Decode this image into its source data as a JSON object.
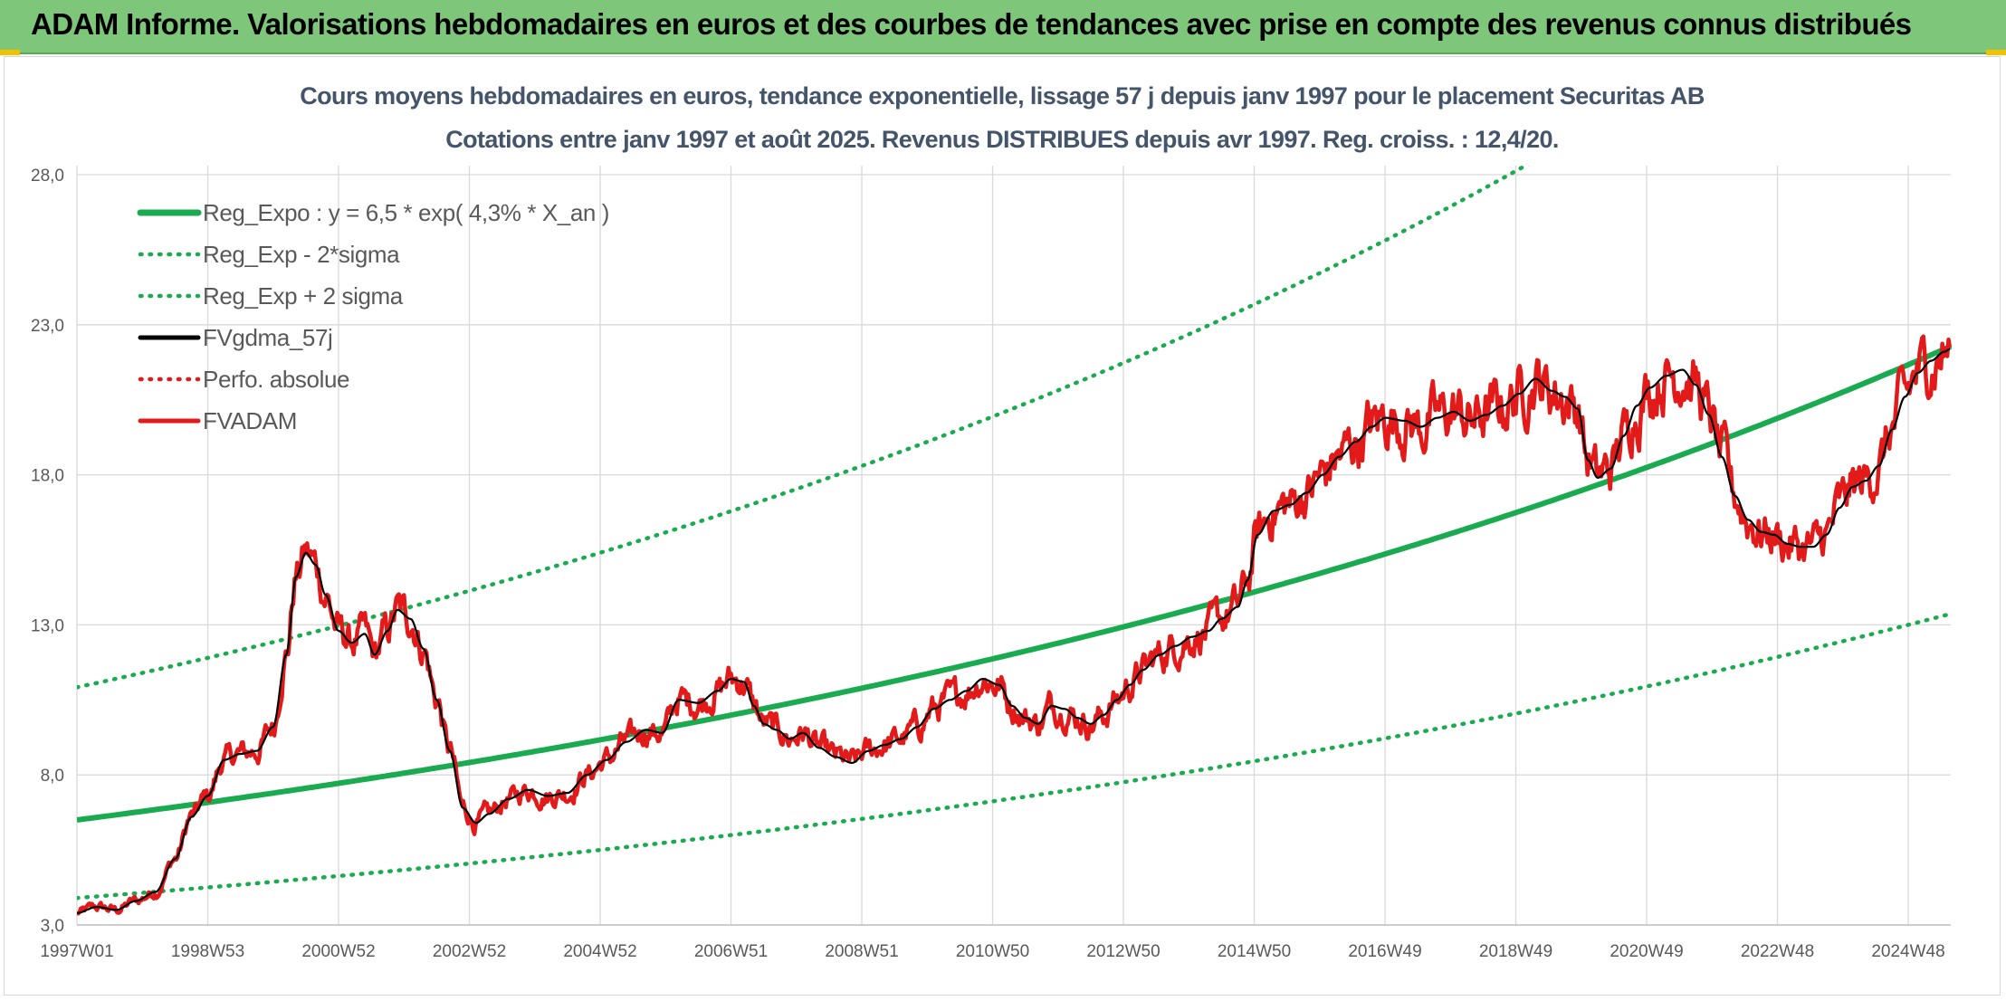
{
  "banner": {
    "title": "ADAM Informe. Valorisations hebdomadaires en euros et des courbes de tendances avec prise en compte des revenus connus distribués"
  },
  "colors": {
    "banner_bg": "#7dc67a",
    "regression": "#1aaa4f",
    "bands": "#1aaa4f",
    "smoothed": "#000000",
    "price": "#e31a1a",
    "title_text": "#44546a",
    "gridlines": "#d9d9d9"
  },
  "chart_data": {
    "type": "line",
    "title": "Cours moyens hebdomadaires en euros, tendance exponentielle, lissage 57 j depuis janv 1997 pour le placement Securitas AB",
    "subtitle": "Cotations entre janv 1997 et août 2025. Revenus DISTRIBUES depuis avr 1997. Reg. croiss. : 12,4/20.",
    "xlabel": "",
    "ylabel": "",
    "ylim": [
      3.0,
      28.0
    ],
    "xlim": [
      1997.0,
      2025.65
    ],
    "y_ticks": [
      "3,0",
      "8,0",
      "13,0",
      "18,0",
      "23,0",
      "28,0"
    ],
    "y_tick_values": [
      3,
      8,
      13,
      18,
      23,
      28
    ],
    "x_ticks": [
      "1997W01",
      "1998W53",
      "2000W52",
      "2002W52",
      "2004W52",
      "2006W51",
      "2008W51",
      "2010W50",
      "2012W50",
      "2014W50",
      "2016W49",
      "2018W49",
      "2020W49",
      "2022W48",
      "2024W48"
    ],
    "x_tick_values": [
      1997.0,
      1999.0,
      2001.0,
      2003.0,
      2005.0,
      2007.0,
      2009.0,
      2011.0,
      2013.0,
      2015.0,
      2017.0,
      2019.0,
      2021.0,
      2023.0,
      2025.0
    ],
    "grid": true,
    "legend_position": "top-left",
    "regression": {
      "a": 6.5,
      "rate": 0.043,
      "sigma_factor_upper": 1.68,
      "sigma_factor_lower": 0.6
    },
    "series": [
      {
        "name": "Reg_Expo : y = 6,5 * exp( 4,3% *  X_an )",
        "style": "solid-thick",
        "color": "#1aaa4f"
      },
      {
        "name": "Reg_Exp - 2*sigma",
        "style": "dotted",
        "color": "#1aaa4f"
      },
      {
        "name": "Reg_Exp + 2 sigma",
        "style": "dotted",
        "color": "#1aaa4f"
      },
      {
        "name": "FVgdma_57j",
        "style": "solid",
        "color": "#000000"
      },
      {
        "name": "Perfo. absolue",
        "style": "dotted",
        "color": "#e31a1a"
      },
      {
        "name": "FVADAM",
        "style": "solid",
        "color": "#e31a1a"
      }
    ],
    "price_points": [
      [
        1997.0,
        3.4
      ],
      [
        1997.3,
        3.6
      ],
      [
        1997.6,
        3.5
      ],
      [
        1997.9,
        3.8
      ],
      [
        1998.2,
        4.1
      ],
      [
        1998.5,
        5.2
      ],
      [
        1998.75,
        6.6
      ],
      [
        1999.0,
        7.3
      ],
      [
        1999.25,
        8.5
      ],
      [
        1999.5,
        8.7
      ],
      [
        1999.75,
        8.8
      ],
      [
        2000.0,
        9.6
      ],
      [
        2000.2,
        12.0
      ],
      [
        2000.35,
        14.6
      ],
      [
        2000.5,
        15.4
      ],
      [
        2000.65,
        15.0
      ],
      [
        2000.8,
        14.0
      ],
      [
        2001.0,
        12.8
      ],
      [
        2001.2,
        12.4
      ],
      [
        2001.4,
        12.7
      ],
      [
        2001.55,
        12.0
      ],
      [
        2001.75,
        12.8
      ],
      [
        2001.9,
        13.5
      ],
      [
        2002.1,
        13.2
      ],
      [
        2002.3,
        12.2
      ],
      [
        2002.5,
        10.5
      ],
      [
        2002.7,
        8.8
      ],
      [
        2002.9,
        6.9
      ],
      [
        2003.1,
        6.4
      ],
      [
        2003.3,
        6.7
      ],
      [
        2003.6,
        7.2
      ],
      [
        2003.9,
        7.5
      ],
      [
        2004.2,
        7.3
      ],
      [
        2004.5,
        7.4
      ],
      [
        2004.8,
        8.0
      ],
      [
        2005.1,
        8.5
      ],
      [
        2005.4,
        9.1
      ],
      [
        2005.7,
        9.5
      ],
      [
        2005.95,
        9.4
      ],
      [
        2006.2,
        10.5
      ],
      [
        2006.5,
        10.4
      ],
      [
        2006.8,
        10.8
      ],
      [
        2007.0,
        11.2
      ],
      [
        2007.2,
        11.1
      ],
      [
        2007.35,
        10.3
      ],
      [
        2007.5,
        9.7
      ],
      [
        2007.7,
        9.5
      ],
      [
        2007.9,
        9.2
      ],
      [
        2008.1,
        9.4
      ],
      [
        2008.35,
        8.9
      ],
      [
        2008.6,
        8.6
      ],
      [
        2008.85,
        8.4
      ],
      [
        2009.1,
        8.8
      ],
      [
        2009.35,
        9.0
      ],
      [
        2009.6,
        9.2
      ],
      [
        2009.85,
        9.6
      ],
      [
        2010.1,
        10.2
      ],
      [
        2010.35,
        10.5
      ],
      [
        2010.6,
        10.8
      ],
      [
        2010.85,
        11.2
      ],
      [
        2011.1,
        11.0
      ],
      [
        2011.3,
        10.3
      ],
      [
        2011.5,
        9.9
      ],
      [
        2011.7,
        9.7
      ],
      [
        2011.9,
        10.3
      ],
      [
        2012.1,
        10.2
      ],
      [
        2012.3,
        9.9
      ],
      [
        2012.5,
        9.7
      ],
      [
        2012.7,
        10.0
      ],
      [
        2012.9,
        10.5
      ],
      [
        2013.1,
        11.0
      ],
      [
        2013.3,
        11.5
      ],
      [
        2013.55,
        12.0
      ],
      [
        2013.8,
        12.3
      ],
      [
        2014.05,
        12.6
      ],
      [
        2014.3,
        12.8
      ],
      [
        2014.5,
        13.2
      ],
      [
        2014.75,
        13.6
      ],
      [
        2014.9,
        14.5
      ],
      [
        2015.05,
        16.0
      ],
      [
        2015.3,
        16.8
      ],
      [
        2015.55,
        17.0
      ],
      [
        2015.8,
        17.4
      ],
      [
        2016.05,
        18.0
      ],
      [
        2016.3,
        18.6
      ],
      [
        2016.55,
        19.1
      ],
      [
        2016.8,
        19.6
      ],
      [
        2017.0,
        19.9
      ],
      [
        2017.3,
        19.8
      ],
      [
        2017.55,
        19.6
      ],
      [
        2017.8,
        19.9
      ],
      [
        2018.05,
        20.1
      ],
      [
        2018.3,
        19.8
      ],
      [
        2018.55,
        20.0
      ],
      [
        2018.8,
        20.3
      ],
      [
        2019.05,
        20.7
      ],
      [
        2019.3,
        21.2
      ],
      [
        2019.55,
        20.8
      ],
      [
        2019.75,
        20.6
      ],
      [
        2019.95,
        20.2
      ],
      [
        2020.1,
        18.5
      ],
      [
        2020.25,
        17.9
      ],
      [
        2020.45,
        18.2
      ],
      [
        2020.65,
        19.3
      ],
      [
        2020.85,
        20.3
      ],
      [
        2021.05,
        20.9
      ],
      [
        2021.3,
        21.3
      ],
      [
        2021.55,
        21.5
      ],
      [
        2021.75,
        21.0
      ],
      [
        2021.95,
        20.0
      ],
      [
        2022.15,
        18.6
      ],
      [
        2022.35,
        17.3
      ],
      [
        2022.55,
        16.5
      ],
      [
        2022.75,
        16.1
      ],
      [
        2022.95,
        16.0
      ],
      [
        2023.15,
        15.7
      ],
      [
        2023.35,
        15.6
      ],
      [
        2023.55,
        15.6
      ],
      [
        2023.75,
        16.0
      ],
      [
        2023.95,
        16.9
      ],
      [
        2024.15,
        17.6
      ],
      [
        2024.35,
        17.8
      ],
      [
        2024.55,
        18.3
      ],
      [
        2024.75,
        19.5
      ],
      [
        2024.95,
        20.6
      ],
      [
        2025.15,
        21.4
      ],
      [
        2025.35,
        21.8
      ],
      [
        2025.55,
        22.1
      ],
      [
        2025.65,
        22.2
      ]
    ]
  }
}
